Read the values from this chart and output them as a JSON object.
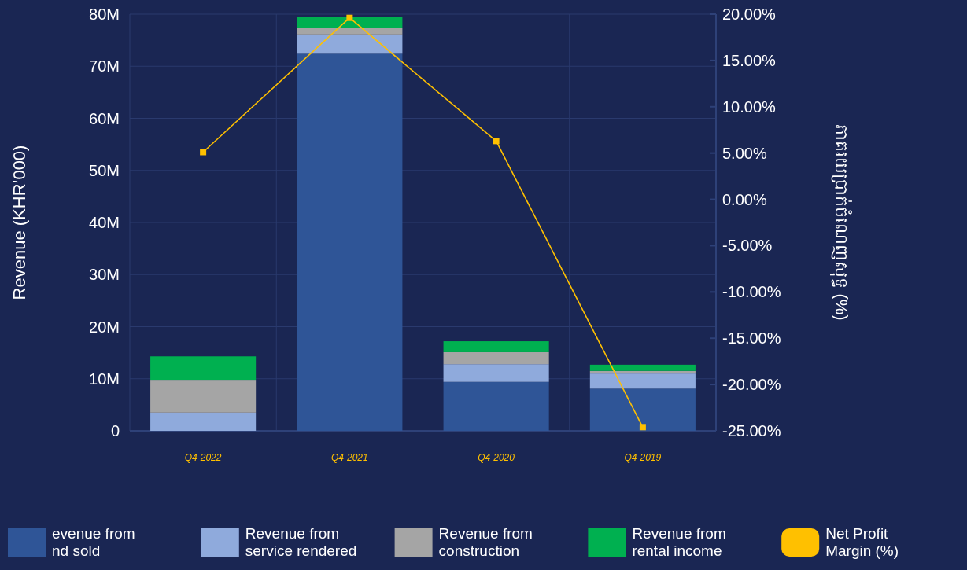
{
  "chart_data": {
    "type": "bar",
    "stacked": true,
    "categories": [
      "Q4-2022",
      "Q4-2021",
      "Q4-2020",
      "Q4-2019"
    ],
    "ylabel": "Revenue (KHR’000)",
    "y2label": "ភាគរយប្រាក់ចំណេញសុទ្ធ (%)",
    "ylim": [
      0,
      80
    ],
    "yticks": [
      {
        "value": 0,
        "label": "0"
      },
      {
        "value": 10,
        "label": "10M"
      },
      {
        "value": 20,
        "label": "20M"
      },
      {
        "value": 30,
        "label": "30M"
      },
      {
        "value": 40,
        "label": "40M"
      },
      {
        "value": 50,
        "label": "50M"
      },
      {
        "value": 60,
        "label": "60M"
      },
      {
        "value": 70,
        "label": "70M"
      },
      {
        "value": 80,
        "label": "80M"
      }
    ],
    "y2lim": [
      -25,
      20
    ],
    "y2ticks": [
      {
        "value": -25,
        "label": "-25.00%"
      },
      {
        "value": -20,
        "label": "-20.00%"
      },
      {
        "value": -15,
        "label": "-15.00%"
      },
      {
        "value": -10,
        "label": "-10.00%"
      },
      {
        "value": -5,
        "label": "-5.00%"
      },
      {
        "value": 0,
        "label": "0.00%"
      },
      {
        "value": 5,
        "label": "5.00%"
      },
      {
        "value": 10,
        "label": "10.00%"
      },
      {
        "value": 15,
        "label": "15.00%"
      },
      {
        "value": 20,
        "label": "20.00%"
      }
    ],
    "grid": true,
    "legend": "bottom",
    "series": [
      {
        "name": "evenue from nd sold",
        "color": "#2f5597",
        "values": [
          0,
          72.4,
          9.4,
          8.1
        ]
      },
      {
        "name": "Revenue from service rendered",
        "color": "#8faadc",
        "values": [
          3.5,
          3.7,
          3.4,
          2.9
        ]
      },
      {
        "name": "Revenue from construction",
        "color": "#a5a5a5",
        "values": [
          6.3,
          1.2,
          2.3,
          0.5
        ]
      },
      {
        "name": "Revenue from rental income",
        "color": "#00b050",
        "values": [
          4.5,
          2.1,
          2.1,
          1.2
        ]
      },
      {
        "name": "Net Profit Margin (%)",
        "type": "line",
        "axis": "y2",
        "color": "#ffc000",
        "marker": "square",
        "values": [
          5.1,
          19.6,
          6.3,
          -24.6
        ]
      }
    ]
  }
}
